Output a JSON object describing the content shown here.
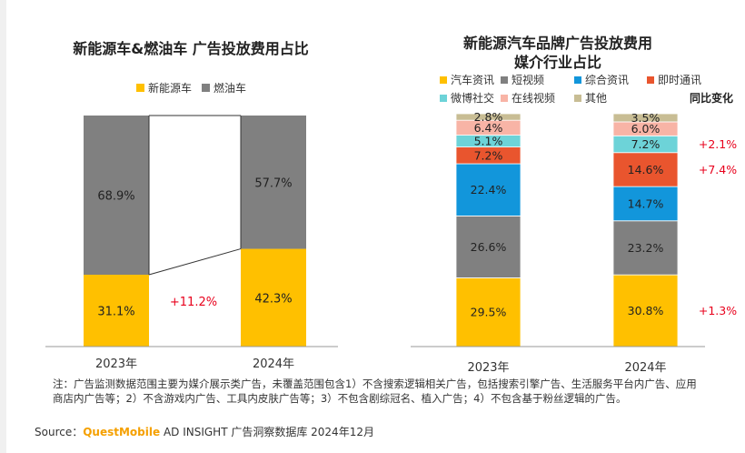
{
  "colors": {
    "nev": "#ffc000",
    "fuel": "#808080",
    "auto_info": "#ffc000",
    "short_video": "#808080",
    "general_info": "#1296db",
    "im": "#e9552e",
    "weibo": "#6dd3d8",
    "online_video": "#f8b4a6",
    "other": "#c8bd94",
    "positive_change": "#e8001c"
  },
  "chart_data": [
    {
      "type": "bar",
      "stacked": true,
      "normalized": true,
      "title": "新能源车&燃油车 广告投放费用占比",
      "categories": [
        "2023年",
        "2024年"
      ],
      "series": [
        {
          "name": "新能源车",
          "values": [
            31.1,
            42.3
          ],
          "labels": [
            "31.1%",
            "42.3%"
          ]
        },
        {
          "name": "燃油车",
          "values": [
            68.9,
            57.7
          ],
          "labels": [
            "68.9%",
            "57.7%"
          ]
        }
      ],
      "change_annotation": "+11.2%",
      "legend_position": "top",
      "grid": false
    },
    {
      "type": "bar",
      "stacked": true,
      "normalized": true,
      "title": "新能源汽车品牌广告投放费用",
      "subtitle": "媒介行业占比",
      "categories": [
        "2023年",
        "2024年"
      ],
      "series": [
        {
          "name": "汽车资讯",
          "values": [
            29.5,
            30.8
          ],
          "labels": [
            "29.5%",
            "30.8%"
          ]
        },
        {
          "name": "短视频",
          "values": [
            26.6,
            23.2
          ],
          "labels": [
            "26.6%",
            "23.2%"
          ]
        },
        {
          "name": "综合资讯",
          "values": [
            22.4,
            14.7
          ],
          "labels": [
            "22.4%",
            "14.7%"
          ]
        },
        {
          "name": "即时通讯",
          "values": [
            7.2,
            14.6
          ],
          "labels": [
            "7.2%",
            "14.6%"
          ]
        },
        {
          "name": "微博社交",
          "values": [
            5.1,
            7.2
          ],
          "labels": [
            "5.1%",
            "7.2%"
          ]
        },
        {
          "name": "在线视频",
          "values": [
            6.4,
            6.0
          ],
          "labels": [
            "6.4%",
            "6.0%"
          ]
        },
        {
          "name": "其他",
          "values": [
            2.8,
            3.5
          ],
          "labels": [
            "2.8%",
            "3.5%"
          ]
        }
      ],
      "change_header": "同比变化",
      "changes": [
        {
          "series": "微博社交",
          "label": "+2.1%"
        },
        {
          "series": "即时通讯",
          "label": "+7.4%"
        },
        {
          "series": "汽车资讯",
          "label": "+1.3%"
        }
      ],
      "legend_position": "top",
      "grid": false
    }
  ],
  "footer": {
    "note": "注：广告监测数据范围主要为媒介展示类广告，未覆盖范围包含1）不含搜索逻辑相关广告，包括搜索引擎广告、生活服务平台内广告、应用商店内广告等；2）不含游戏内广告、工具内皮肤广告等；3）不包含剧综冠名、植入广告；4）不包含基于粉丝逻辑的广告。",
    "source_label": "Source：",
    "source_brand": "QuestMobile",
    "source_rest": " AD INSIGHT 广告洞察数据库 2024年12月"
  }
}
